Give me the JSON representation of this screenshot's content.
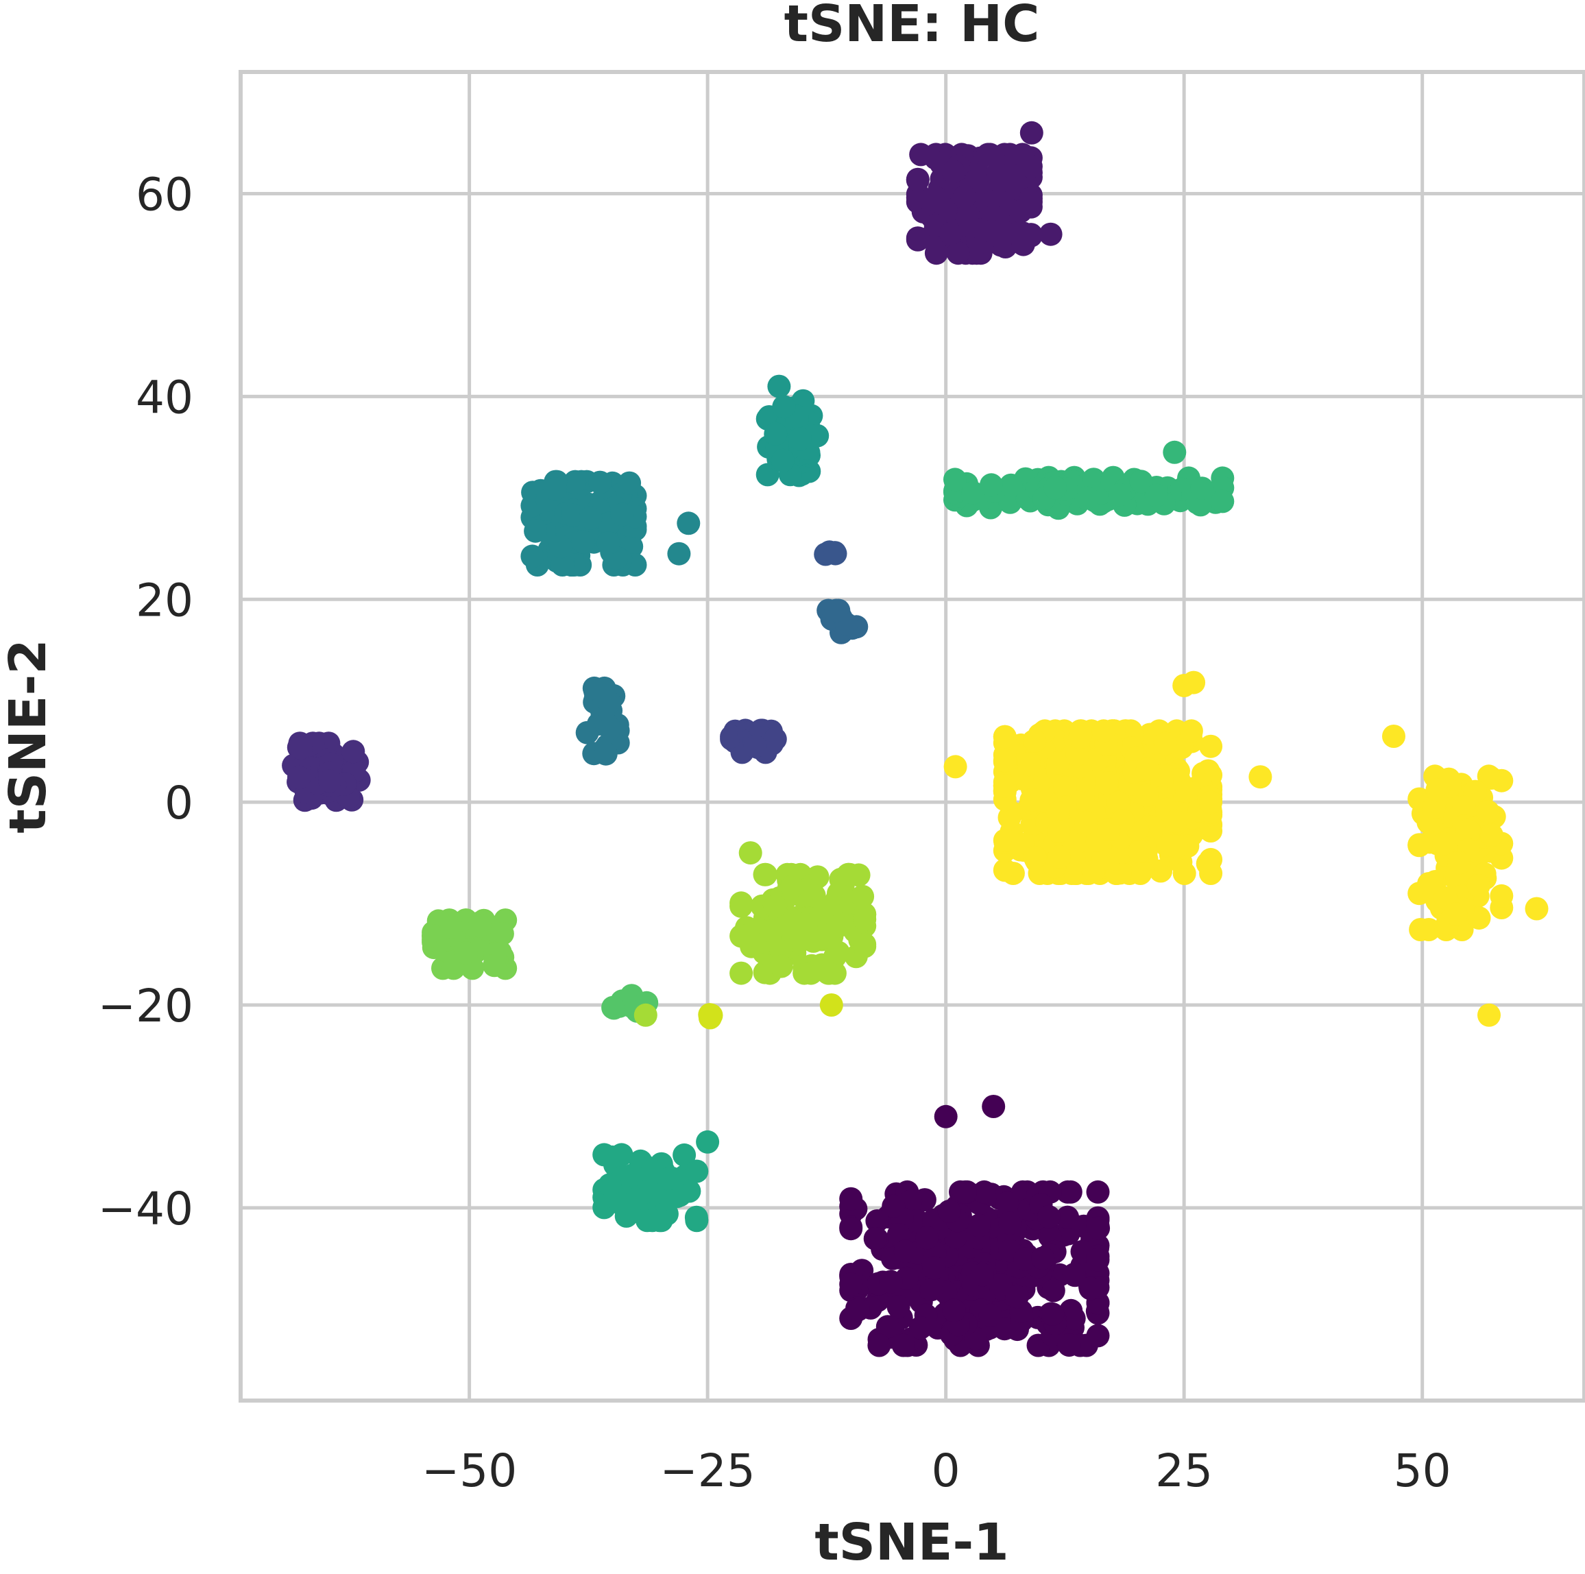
{
  "chart_data": {
    "type": "scatter",
    "title": "tSNE: HC",
    "xlabel": "tSNE-1",
    "ylabel": "tSNE-2",
    "xlim": [
      -74,
      67
    ],
    "ylim": [
      -59,
      72
    ],
    "xticks": [
      -50,
      -25,
      0,
      25,
      50
    ],
    "yticks": [
      -40,
      -20,
      0,
      20,
      40,
      60
    ],
    "xtick_labels": [
      "−50",
      "−25",
      "0",
      "25",
      "50"
    ],
    "ytick_labels": [
      "−40",
      "−20",
      "0",
      "20",
      "40",
      "60"
    ],
    "grid": true,
    "colormap": "viridis",
    "clusters": [
      {
        "id": 0,
        "color": "#440154",
        "center": [
          3,
          -46
        ],
        "spread": [
          12,
          7
        ],
        "n": 320
      },
      {
        "id": 1,
        "color": "#481a6c",
        "center": [
          3,
          59
        ],
        "spread": [
          5.5,
          4.5
        ],
        "n": 200
      },
      {
        "id": 2,
        "color": "#472f7d",
        "center": [
          -65,
          3
        ],
        "spread": [
          3.2,
          2.6
        ],
        "n": 70
      },
      {
        "id": 3,
        "color": "#414487",
        "center": [
          -20,
          6
        ],
        "spread": [
          2.3,
          1
        ],
        "n": 30
      },
      {
        "id": 4,
        "color": "#39568c",
        "center": [
          -12,
          24.5
        ],
        "spread": [
          0.6,
          0.4
        ],
        "n": 4
      },
      {
        "id": 5,
        "color": "#31688e",
        "center": [
          -11,
          17.5
        ],
        "spread": [
          1.5,
          1.3
        ],
        "n": 18
      },
      {
        "id": 6,
        "color": "#2a788e",
        "center": [
          -36,
          8
        ],
        "spread": [
          1.5,
          3
        ],
        "n": 26
      },
      {
        "id": 7,
        "color": "#23888e",
        "center": [
          -38,
          27.5
        ],
        "spread": [
          5,
          3.8
        ],
        "n": 140
      },
      {
        "id": 8,
        "color": "#1f988b",
        "center": [
          -16,
          36
        ],
        "spread": [
          2.5,
          3.5
        ],
        "n": 60
      },
      {
        "id": 9,
        "color": "#22a884",
        "center": [
          -31,
          -38
        ],
        "spread": [
          4.5,
          3
        ],
        "n": 60
      },
      {
        "id": 10,
        "color": "#35b779",
        "center": [
          15,
          30.5
        ],
        "spread": [
          13,
          1.4
        ],
        "n": 120
      },
      {
        "id": 11,
        "color": "#54c568",
        "center": [
          -33,
          -20
        ],
        "spread": [
          2,
          1.2
        ],
        "n": 14
      },
      {
        "id": 12,
        "color": "#7ad151",
        "center": [
          -50,
          -14
        ],
        "spread": [
          3.5,
          2.2
        ],
        "n": 70
      },
      {
        "id": 13,
        "color": "#a5db36",
        "center": [
          -15,
          -12
        ],
        "spread": [
          6,
          4.5
        ],
        "n": 130
      },
      {
        "id": 14,
        "color": "#d2e21b",
        "center": [
          -25,
          -21
        ],
        "spread": [
          0.4,
          0.3
        ],
        "n": 3
      },
      {
        "id": 15,
        "color": "#fde725",
        "center": [
          17,
          0
        ],
        "spread": [
          10,
          6.5
        ],
        "n": 520
      },
      {
        "id": 16,
        "color": "#fde725",
        "center": [
          54,
          -5
        ],
        "spread": [
          4,
          7
        ],
        "n": 110
      }
    ],
    "extra_points": [
      {
        "color": "#a5db36",
        "x": -20.5,
        "y": -5
      },
      {
        "color": "#d2e21b",
        "x": -12,
        "y": -20
      },
      {
        "color": "#a5db36",
        "x": -31.5,
        "y": -21
      },
      {
        "color": "#fde725",
        "x": 25,
        "y": 11.5
      },
      {
        "color": "#fde725",
        "x": 26,
        "y": 11.8
      },
      {
        "color": "#1f988b",
        "x": -17.5,
        "y": 41
      },
      {
        "color": "#1f988b",
        "x": -17,
        "y": 39
      },
      {
        "color": "#440154",
        "x": 16,
        "y": -42
      },
      {
        "color": "#440154",
        "x": 0,
        "y": -31
      },
      {
        "color": "#440154",
        "x": 5,
        "y": -30
      },
      {
        "color": "#481a6c",
        "x": 11,
        "y": 56
      },
      {
        "color": "#481a6c",
        "x": 9,
        "y": 66
      },
      {
        "color": "#22a884",
        "x": -25,
        "y": -33.5
      },
      {
        "color": "#22a884",
        "x": -35,
        "y": -35
      },
      {
        "color": "#23888e",
        "x": -27,
        "y": 27.5
      },
      {
        "color": "#23888e",
        "x": -28,
        "y": 24.5
      },
      {
        "color": "#35b779",
        "x": 24,
        "y": 34.5
      },
      {
        "color": "#fde725",
        "x": 47,
        "y": 6.5
      },
      {
        "color": "#fde725",
        "x": 57,
        "y": -21
      },
      {
        "color": "#fde725",
        "x": 62,
        "y": -10.5
      },
      {
        "color": "#fde725",
        "x": 1,
        "y": 3.5
      },
      {
        "color": "#fde725",
        "x": 33,
        "y": 2.5
      }
    ]
  }
}
